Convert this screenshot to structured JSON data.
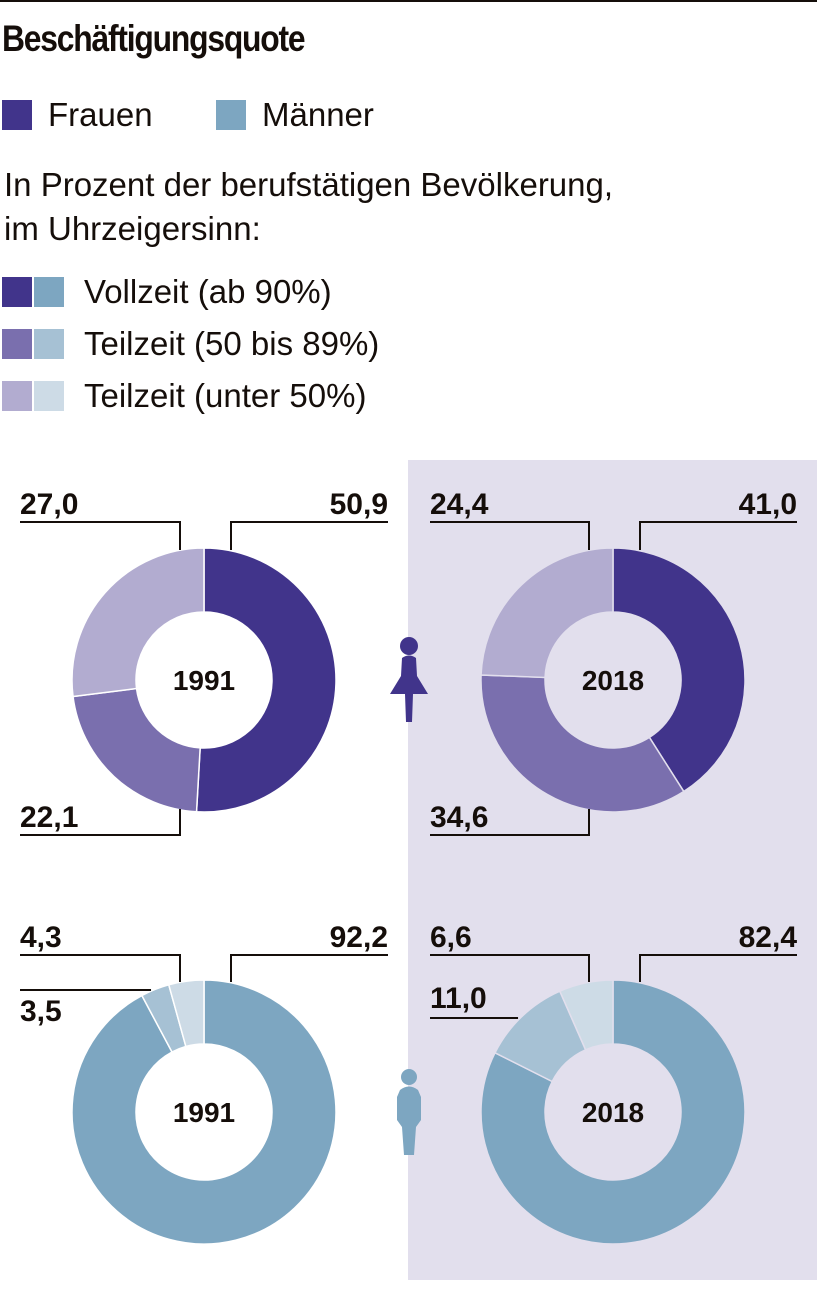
{
  "title": "Beschäftigungsquote",
  "legend_gender": [
    {
      "label": "Frauen",
      "color": "#41348b"
    },
    {
      "label": "Männer",
      "color": "#7da6c1"
    }
  ],
  "subtitle_lines": [
    "In Prozent der berufstätigen Bevölkerung,",
    "im Uhrzeigersinn:"
  ],
  "legend_categories": [
    {
      "label": "Vollzeit (ab 90%)",
      "colors": [
        "#41348b",
        "#7da6c1"
      ]
    },
    {
      "label": "Teilzeit (50 bis 89%)",
      "colors": [
        "#7a6fae",
        "#a6c1d4"
      ]
    },
    {
      "label": "Teilzeit (unter 50%)",
      "colors": [
        "#b2acd0",
        "#cddbe6"
      ]
    }
  ],
  "panel_highlight_color": "#e2dfed",
  "icons": {
    "women": "woman-icon",
    "men": "man-icon"
  },
  "chart_data": {
    "type": "pie",
    "subtype": "donut",
    "title": "Beschäftigungsquote",
    "unit": "%",
    "direction": "clockwise",
    "categories": [
      "Vollzeit (ab 90%)",
      "Teilzeit (50 bis 89%)",
      "Teilzeit (unter 50%)"
    ],
    "charts": [
      {
        "group": "Frauen",
        "year": "1991",
        "values": [
          50.9,
          22.1,
          27.0
        ],
        "labels": [
          "50,9",
          "22,1",
          "27,0"
        ],
        "colors": [
          "#41348b",
          "#7a6fae",
          "#b2acd0"
        ]
      },
      {
        "group": "Frauen",
        "year": "2018",
        "values": [
          41.0,
          34.6,
          24.4
        ],
        "labels": [
          "41,0",
          "34,6",
          "24,4"
        ],
        "colors": [
          "#41348b",
          "#7a6fae",
          "#b2acd0"
        ]
      },
      {
        "group": "Männer",
        "year": "1991",
        "values": [
          92.2,
          3.5,
          4.3
        ],
        "labels": [
          "92,2",
          "3,5",
          "4,3"
        ],
        "colors": [
          "#7da6c1",
          "#a6c1d4",
          "#cddbe6"
        ]
      },
      {
        "group": "Männer",
        "year": "2018",
        "values": [
          82.4,
          11.0,
          6.6
        ],
        "labels": [
          "82,4",
          "11,0",
          "6,6"
        ],
        "colors": [
          "#7da6c1",
          "#a6c1d4",
          "#cddbe6"
        ]
      }
    ]
  }
}
